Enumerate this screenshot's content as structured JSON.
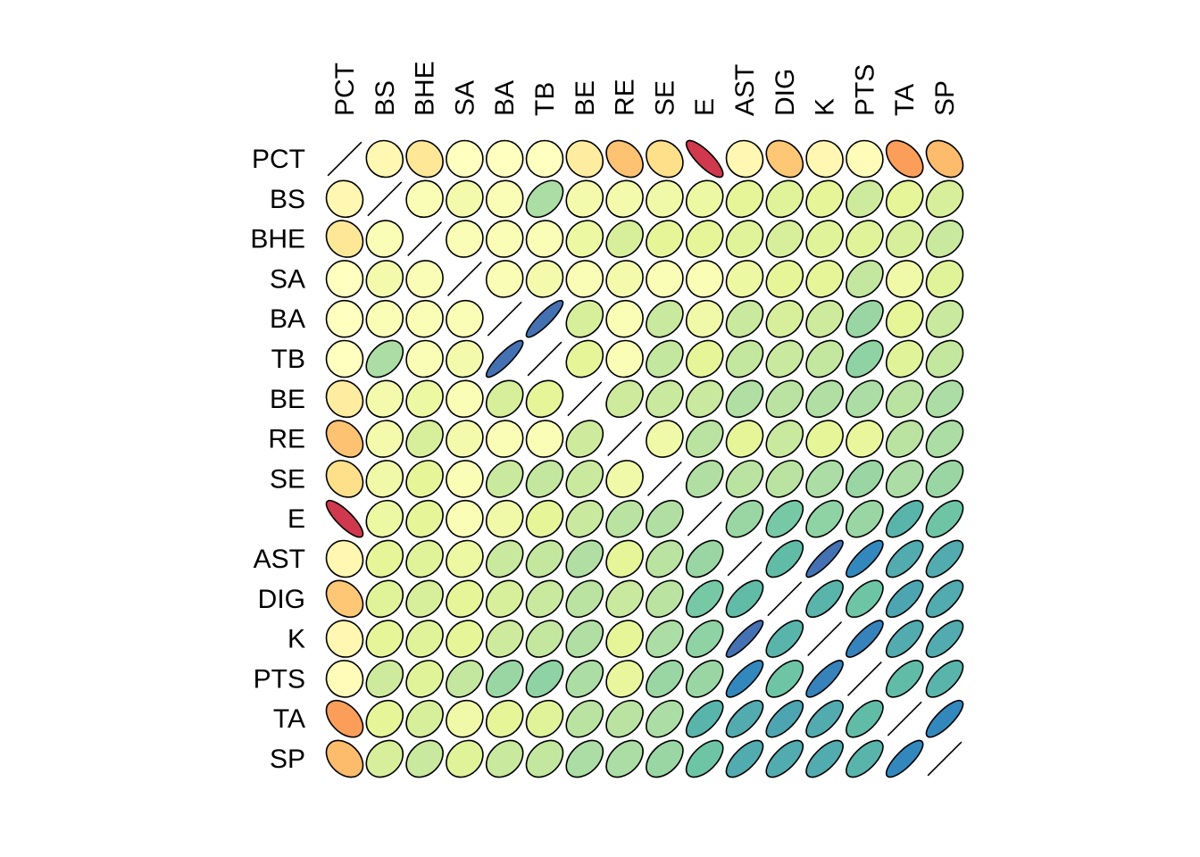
{
  "chart_data": {
    "type": "heatmap",
    "subtype": "ellipse-correlation-matrix",
    "title": "",
    "variables": [
      "PCT",
      "BS",
      "BHE",
      "SA",
      "BA",
      "TB",
      "BE",
      "RE",
      "SE",
      "E",
      "AST",
      "DIG",
      "K",
      "PTS",
      "TA",
      "SP"
    ],
    "matrix": [
      [
        1.0,
        -0.05,
        -0.15,
        0.0,
        0.0,
        0.0,
        -0.12,
        -0.32,
        -0.2,
        -0.82,
        -0.05,
        -0.3,
        -0.05,
        -0.02,
        -0.45,
        -0.35
      ],
      [
        -0.05,
        1.0,
        0.05,
        0.1,
        0.05,
        0.4,
        0.1,
        0.1,
        0.12,
        0.15,
        0.2,
        0.22,
        0.2,
        0.28,
        0.2,
        0.25
      ],
      [
        -0.15,
        0.05,
        1.0,
        0.05,
        0.05,
        0.05,
        0.15,
        0.25,
        0.2,
        0.2,
        0.22,
        0.25,
        0.22,
        0.22,
        0.25,
        0.3
      ],
      [
        0.0,
        0.1,
        0.05,
        1.0,
        0.05,
        0.1,
        0.05,
        0.1,
        0.05,
        0.05,
        0.15,
        0.2,
        0.2,
        0.32,
        0.12,
        0.22
      ],
      [
        0.0,
        0.05,
        0.05,
        0.05,
        1.0,
        0.88,
        0.25,
        0.05,
        0.3,
        0.12,
        0.3,
        0.25,
        0.28,
        0.45,
        0.2,
        0.3
      ],
      [
        0.0,
        0.4,
        0.05,
        0.1,
        0.88,
        1.0,
        0.2,
        0.05,
        0.32,
        0.2,
        0.32,
        0.3,
        0.32,
        0.48,
        0.22,
        0.32
      ],
      [
        -0.12,
        0.1,
        0.15,
        0.05,
        0.25,
        0.2,
        1.0,
        0.28,
        0.3,
        0.3,
        0.38,
        0.35,
        0.38,
        0.4,
        0.35,
        0.4
      ],
      [
        -0.32,
        0.1,
        0.25,
        0.1,
        0.05,
        0.05,
        0.28,
        1.0,
        0.12,
        0.35,
        0.2,
        0.3,
        0.2,
        0.18,
        0.35,
        0.4
      ],
      [
        -0.2,
        0.12,
        0.2,
        0.05,
        0.3,
        0.32,
        0.3,
        0.12,
        1.0,
        0.38,
        0.35,
        0.35,
        0.4,
        0.45,
        0.4,
        0.45
      ],
      [
        -0.82,
        0.15,
        0.2,
        0.05,
        0.12,
        0.2,
        0.3,
        0.35,
        0.38,
        1.0,
        0.45,
        0.55,
        0.48,
        0.45,
        0.65,
        0.58
      ],
      [
        -0.05,
        0.2,
        0.22,
        0.15,
        0.3,
        0.32,
        0.38,
        0.2,
        0.35,
        0.45,
        1.0,
        0.62,
        0.88,
        0.8,
        0.68,
        0.68
      ],
      [
        -0.3,
        0.22,
        0.25,
        0.2,
        0.25,
        0.3,
        0.35,
        0.3,
        0.35,
        0.55,
        0.62,
        1.0,
        0.65,
        0.58,
        0.7,
        0.68
      ],
      [
        -0.05,
        0.2,
        0.22,
        0.2,
        0.28,
        0.32,
        0.38,
        0.2,
        0.4,
        0.48,
        0.88,
        0.65,
        1.0,
        0.82,
        0.68,
        0.68
      ],
      [
        -0.02,
        0.28,
        0.22,
        0.32,
        0.45,
        0.48,
        0.4,
        0.18,
        0.45,
        0.45,
        0.8,
        0.58,
        0.82,
        1.0,
        0.62,
        0.65
      ],
      [
        -0.45,
        0.2,
        0.25,
        0.12,
        0.2,
        0.22,
        0.35,
        0.35,
        0.4,
        0.65,
        0.68,
        0.7,
        0.68,
        0.62,
        1.0,
        0.8
      ],
      [
        -0.35,
        0.25,
        0.3,
        0.22,
        0.3,
        0.32,
        0.4,
        0.4,
        0.45,
        0.58,
        0.68,
        0.68,
        0.68,
        0.65,
        0.8,
        1.0
      ]
    ],
    "color_scale": {
      "palette": "RdYlBu-Spectral",
      "domain": [
        -1,
        1
      ],
      "stops": [
        {
          "value": -1.0,
          "color": "#9E0142"
        },
        {
          "value": -0.8,
          "color": "#D53E4F"
        },
        {
          "value": -0.6,
          "color": "#F46D43"
        },
        {
          "value": -0.4,
          "color": "#FDAE61"
        },
        {
          "value": -0.2,
          "color": "#FEE08B"
        },
        {
          "value": 0.0,
          "color": "#FFFFBF"
        },
        {
          "value": 0.2,
          "color": "#E6F598"
        },
        {
          "value": 0.4,
          "color": "#ABDDA4"
        },
        {
          "value": 0.6,
          "color": "#66C2A5"
        },
        {
          "value": 0.8,
          "color": "#3288BD"
        },
        {
          "value": 1.0,
          "color": "#5E4FA2"
        }
      ]
    },
    "diagonal": "line",
    "legend": "none"
  }
}
